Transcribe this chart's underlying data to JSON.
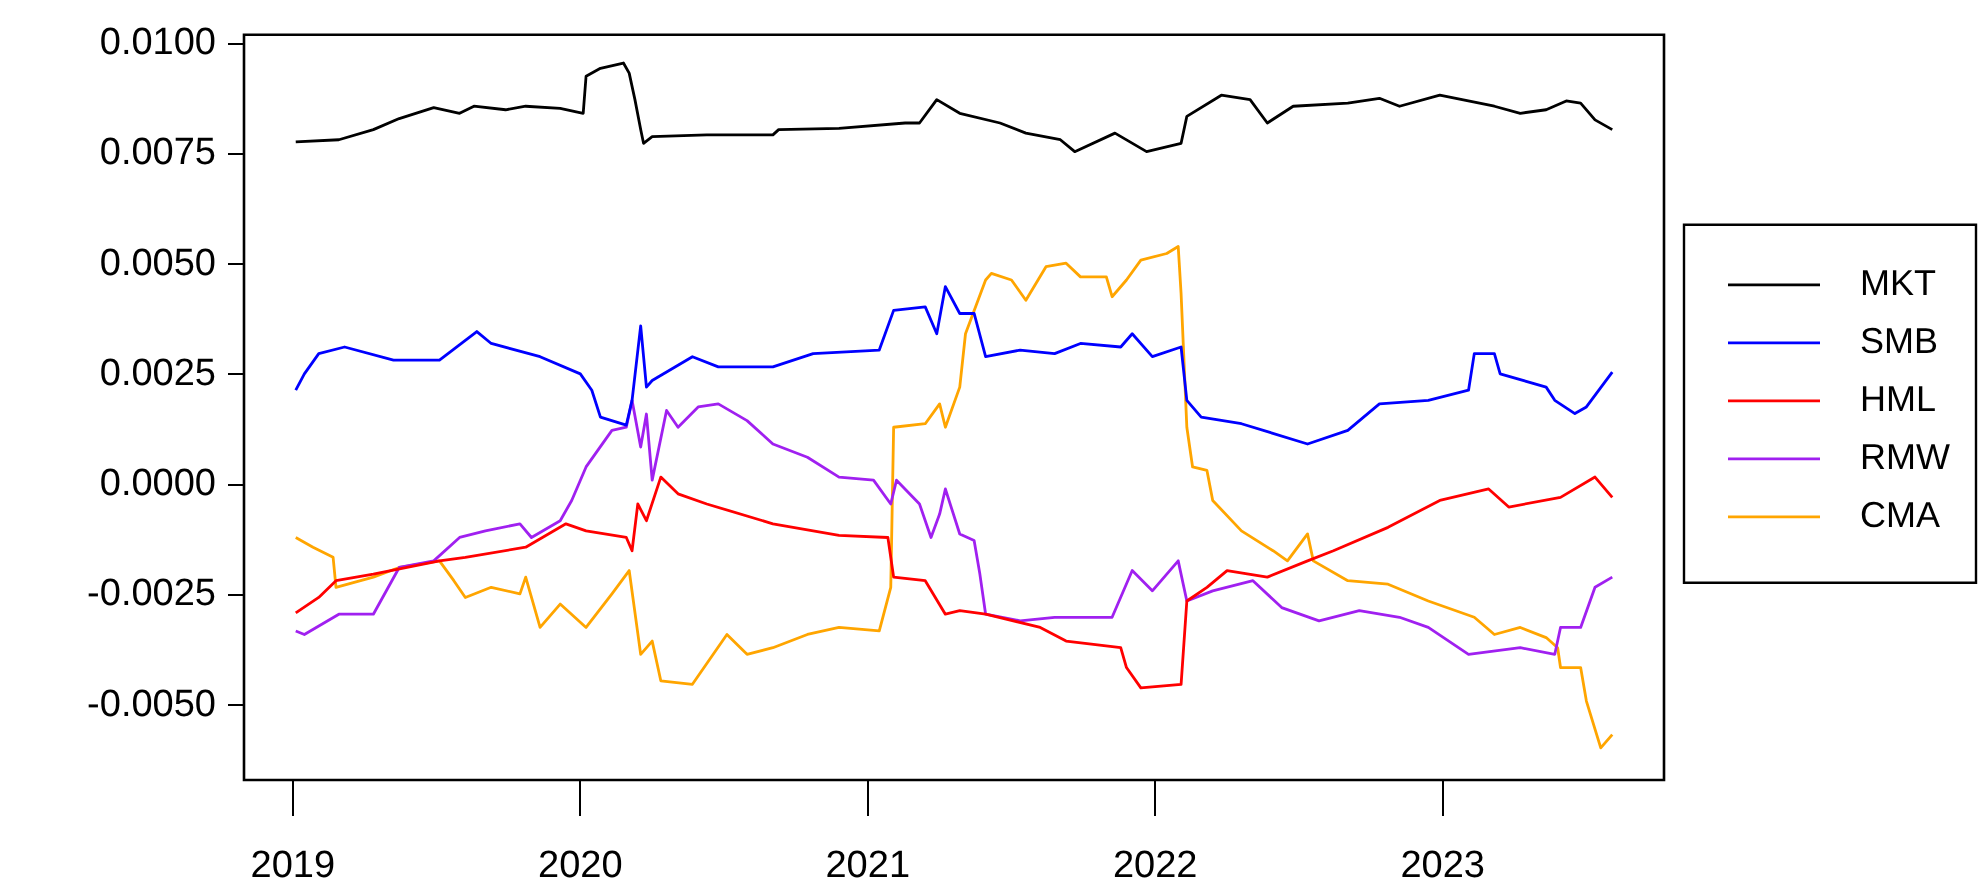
{
  "chart_data": {
    "type": "line",
    "xlim": [
      2018.83,
      2023.77
    ],
    "xticks": [
      2019,
      2020,
      2021,
      2022,
      2023
    ],
    "ylim": [
      -0.0067,
      0.0102
    ],
    "yticks": [
      {
        "value": 0.01,
        "label": "0.0100"
      },
      {
        "value": 0.0075,
        "label": "0.0075"
      },
      {
        "value": 0.005,
        "label": "0.0050"
      },
      {
        "value": 0.0025,
        "label": "0.0025"
      },
      {
        "value": 0,
        "label": "0.0000"
      },
      {
        "value": -0.0025,
        "label": "-0.0025"
      },
      {
        "value": -0.005,
        "label": "-0.0050"
      }
    ],
    "grid": false,
    "legend": "right",
    "marker": "none",
    "line_style": "solid",
    "series": [
      {
        "name": "MKT",
        "color": "#000000",
        "x": [
          2019.01,
          2019.16,
          2019.28,
          2019.37,
          2019.49,
          2019.58,
          2019.63,
          2019.74,
          2019.81,
          2019.93,
          2020.01,
          2020.02,
          2020.07,
          2020.15,
          2020.17,
          2020.19,
          2020.21,
          2020.22,
          2020.25,
          2020.44,
          2020.67,
          2020.69,
          2020.9,
          2021.13,
          2021.18,
          2021.24,
          2021.32,
          2021.46,
          2021.55,
          2021.67,
          2021.72,
          2021.86,
          2021.97,
          2022.09,
          2022.11,
          2022.23,
          2022.33,
          2022.39,
          2022.48,
          2022.67,
          2022.78,
          2022.85,
          2022.99,
          2023.18,
          2023.27,
          2023.36,
          2023.43,
          2023.48,
          2023.53,
          2023.59
        ],
        "values": [
          0.00777,
          0.00782,
          0.00805,
          0.0083,
          0.00855,
          0.00842,
          0.00858,
          0.0085,
          0.00858,
          0.00853,
          0.00842,
          0.00926,
          0.00944,
          0.00956,
          0.00933,
          0.00873,
          0.00805,
          0.00774,
          0.00789,
          0.00793,
          0.00793,
          0.00805,
          0.00808,
          0.0082,
          0.0082,
          0.00873,
          0.00842,
          0.0082,
          0.00797,
          0.00782,
          0.00755,
          0.00797,
          0.00755,
          0.00774,
          0.00835,
          0.00883,
          0.00873,
          0.0082,
          0.00858,
          0.00865,
          0.00876,
          0.00858,
          0.00883,
          0.00858,
          0.00842,
          0.0085,
          0.0087,
          0.00865,
          0.00827,
          0.00805
        ]
      },
      {
        "name": "SMB",
        "color": "#0000ff",
        "x": [
          2019.01,
          2019.04,
          2019.09,
          2019.18,
          2019.35,
          2019.51,
          2019.64,
          2019.69,
          2019.86,
          2020,
          2020.04,
          2020.07,
          2020.16,
          2020.18,
          2020.21,
          2020.23,
          2020.25,
          2020.39,
          2020.48,
          2020.67,
          2020.81,
          2021.04,
          2021.09,
          2021.2,
          2021.24,
          2021.27,
          2021.32,
          2021.37,
          2021.41,
          2021.53,
          2021.65,
          2021.74,
          2021.88,
          2021.92,
          2021.99,
          2022.09,
          2022.1,
          2022.11,
          2022.16,
          2022.3,
          2022.53,
          2022.67,
          2022.78,
          2022.95,
          2023.09,
          2023.11,
          2023.18,
          2023.2,
          2023.36,
          2023.39,
          2023.46,
          2023.5,
          2023.59
        ],
        "values": [
          0.00214,
          0.00251,
          0.00297,
          0.00312,
          0.00282,
          0.00282,
          0.00347,
          0.0032,
          0.0029,
          0.00251,
          0.00214,
          0.00153,
          0.00135,
          0.00191,
          0.0036,
          0.00221,
          0.00236,
          0.0029,
          0.00267,
          0.00267,
          0.00297,
          0.00305,
          0.00395,
          0.00403,
          0.00342,
          0.00449,
          0.00388,
          0.00388,
          0.0029,
          0.00305,
          0.00297,
          0.0032,
          0.00312,
          0.00342,
          0.0029,
          0.00312,
          0.00251,
          0.00191,
          0.00153,
          0.00138,
          0.00092,
          0.00123,
          0.00183,
          0.00191,
          0.00214,
          0.00297,
          0.00297,
          0.00251,
          0.00221,
          0.00191,
          0.00161,
          0.00176,
          0.00255
        ]
      },
      {
        "name": "HML",
        "color": "#ff0000",
        "x": [
          2019.01,
          2019.09,
          2019.15,
          2019.28,
          2019.51,
          2019.6,
          2019.81,
          2019.95,
          2020.02,
          2020.16,
          2020.18,
          2020.2,
          2020.23,
          2020.28,
          2020.34,
          2020.44,
          2020.67,
          2020.9,
          2021.07,
          2021.09,
          2021.2,
          2021.27,
          2021.32,
          2021.41,
          2021.6,
          2021.69,
          2021.88,
          2021.9,
          2021.95,
          2022.09,
          2022.11,
          2022.18,
          2022.25,
          2022.39,
          2022.53,
          2022.62,
          2022.81,
          2022.99,
          2023.16,
          2023.23,
          2023.41,
          2023.53,
          2023.59
        ],
        "values": [
          -0.00291,
          -0.00256,
          -0.00218,
          -0.00203,
          -0.00173,
          -0.00165,
          -0.00142,
          -0.00089,
          -0.00105,
          -0.0012,
          -0.0015,
          -0.00044,
          -0.00082,
          0.00017,
          -0.00021,
          -0.00044,
          -0.00089,
          -0.00115,
          -0.0012,
          -0.0021,
          -0.00218,
          -0.00294,
          -0.00286,
          -0.00294,
          -0.00324,
          -0.00355,
          -0.0037,
          -0.00415,
          -0.00461,
          -0.00453,
          -0.00264,
          -0.00233,
          -0.00195,
          -0.0021,
          -0.00173,
          -0.0015,
          -0.00097,
          -0.00036,
          -0.0001,
          -0.00051,
          -0.00029,
          0.00017,
          -0.00029
        ]
      },
      {
        "name": "RMW",
        "color": "#a020f0",
        "x": [
          2019.01,
          2019.04,
          2019.16,
          2019.28,
          2019.37,
          2019.49,
          2019.58,
          2019.67,
          2019.79,
          2019.83,
          2019.93,
          2019.97,
          2020.02,
          2020.11,
          2020.16,
          2020.18,
          2020.21,
          2020.23,
          2020.25,
          2020.3,
          2020.34,
          2020.41,
          2020.48,
          2020.58,
          2020.67,
          2020.79,
          2020.9,
          2021.02,
          2021.08,
          2021.1,
          2021.18,
          2021.22,
          2021.25,
          2021.27,
          2021.32,
          2021.37,
          2021.39,
          2021.41,
          2021.53,
          2021.65,
          2021.85,
          2021.92,
          2021.99,
          2022.08,
          2022.11,
          2022.2,
          2022.34,
          2022.44,
          2022.57,
          2022.71,
          2022.85,
          2022.95,
          2023.09,
          2023.27,
          2023.39,
          2023.41,
          2023.48,
          2023.53,
          2023.59
        ],
        "values": [
          -0.00332,
          -0.0034,
          -0.00294,
          -0.00294,
          -0.00188,
          -0.00173,
          -0.0012,
          -0.00105,
          -0.00089,
          -0.0012,
          -0.00082,
          -0.00036,
          0.0004,
          0.00123,
          0.0013,
          0.00191,
          0.00085,
          0.0016,
          0.0001,
          0.00168,
          0.0013,
          0.00176,
          0.00183,
          0.00145,
          0.00092,
          0.00062,
          0.00017,
          0.0001,
          -0.00044,
          0.0001,
          -0.00044,
          -0.0012,
          -0.00067,
          -0.0001,
          -0.00112,
          -0.00127,
          -0.00203,
          -0.00294,
          -0.00309,
          -0.00301,
          -0.00301,
          -0.00195,
          -0.00241,
          -0.00173,
          -0.00264,
          -0.00241,
          -0.00218,
          -0.00279,
          -0.00309,
          -0.00286,
          -0.00301,
          -0.00324,
          -0.00385,
          -0.0037,
          -0.00385,
          -0.00324,
          -0.00324,
          -0.00233,
          -0.0021
        ]
      },
      {
        "name": "CMA",
        "color": "#ffa500",
        "x": [
          2019.01,
          2019.07,
          2019.14,
          2019.15,
          2019.28,
          2019.37,
          2019.51,
          2019.56,
          2019.6,
          2019.69,
          2019.79,
          2019.81,
          2019.86,
          2019.93,
          2020.02,
          2020.11,
          2020.17,
          2020.21,
          2020.25,
          2020.28,
          2020.39,
          2020.51,
          2020.58,
          2020.67,
          2020.79,
          2020.9,
          2021.04,
          2021.08,
          2021.09,
          2021.2,
          2021.25,
          2021.27,
          2021.32,
          2021.34,
          2021.41,
          2021.43,
          2021.5,
          2021.55,
          2021.62,
          2021.69,
          2021.74,
          2021.83,
          2021.85,
          2021.9,
          2021.95,
          2022.04,
          2022.08,
          2022.09,
          2022.11,
          2022.13,
          2022.18,
          2022.2,
          2022.3,
          2022.41,
          2022.46,
          2022.53,
          2022.55,
          2022.67,
          2022.81,
          2022.95,
          2023.11,
          2023.18,
          2023.27,
          2023.36,
          2023.4,
          2023.41,
          2023.48,
          2023.5,
          2023.55,
          2023.59
        ],
        "values": [
          -0.0012,
          -0.00142,
          -0.00165,
          -0.00233,
          -0.0021,
          -0.00188,
          -0.00173,
          -0.00218,
          -0.00256,
          -0.00233,
          -0.00248,
          -0.0021,
          -0.00324,
          -0.00271,
          -0.00324,
          -0.00248,
          -0.00195,
          -0.00385,
          -0.00355,
          -0.00445,
          -0.00453,
          -0.0034,
          -0.00385,
          -0.0037,
          -0.0034,
          -0.00324,
          -0.00332,
          -0.00233,
          0.0013,
          0.00138,
          0.00183,
          0.0013,
          0.00221,
          0.00342,
          0.00464,
          0.00479,
          0.00464,
          0.00418,
          0.00494,
          0.00502,
          0.00471,
          0.00471,
          0.00426,
          0.00464,
          0.00509,
          0.00524,
          0.0054,
          0.00433,
          0.0013,
          0.0004,
          0.00032,
          -0.00036,
          -0.00105,
          -0.0015,
          -0.00173,
          -0.00112,
          -0.00173,
          -0.00218,
          -0.00226,
          -0.00264,
          -0.00301,
          -0.0034,
          -0.00324,
          -0.00347,
          -0.0037,
          -0.00415,
          -0.00415,
          -0.00491,
          -0.00597,
          -0.00567
        ]
      }
    ]
  }
}
